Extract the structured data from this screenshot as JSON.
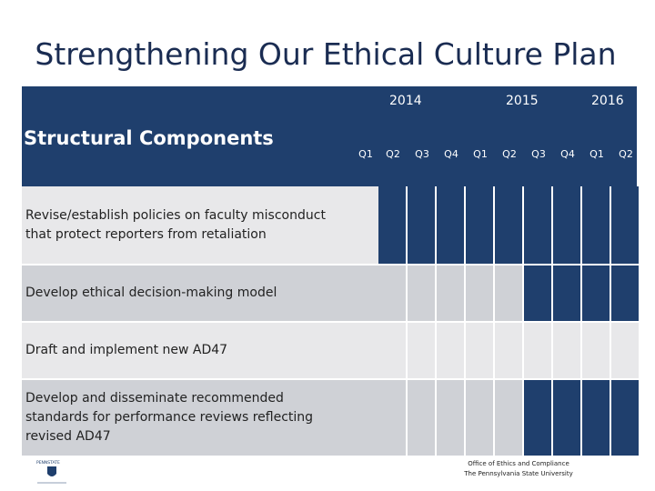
{
  "slide": {
    "title": "Strengthening Our Ethical Culture Plan",
    "header_label": "Structural Components",
    "years": [
      "2014",
      "2015",
      "2016"
    ],
    "quarters": [
      "Q1",
      "Q2",
      "Q3",
      "Q4",
      "Q1",
      "Q2",
      "Q3",
      "Q4",
      "Q1",
      "Q2"
    ]
  },
  "rows": [
    {
      "label": "Revise/establish policies on faculty misconduct that protect reporters from retaliation",
      "active": [
        false,
        true,
        true,
        true,
        true,
        true,
        true,
        true,
        true,
        true
      ]
    },
    {
      "label": "Develop ethical decision-making model",
      "active": [
        false,
        false,
        false,
        false,
        false,
        false,
        true,
        true,
        true,
        true
      ]
    },
    {
      "label": "Draft and implement new AD47",
      "active": [
        false,
        false,
        false,
        false,
        false,
        false,
        false,
        false,
        false,
        false
      ]
    },
    {
      "label": "Develop and disseminate recommended standards for performance reviews reflecting revised AD47",
      "active": [
        false,
        false,
        false,
        false,
        false,
        false,
        true,
        true,
        true,
        true
      ]
    }
  ],
  "footer": {
    "office": "Office of Ethics and Compliance",
    "university": "The Pennsylvania State University",
    "logo_text": "PENNSTATE"
  },
  "colors": {
    "navy": "#1f3f6d",
    "light_row": "#e8e8ea",
    "dark_row": "#cfd1d6",
    "title": "#1a2c52"
  }
}
